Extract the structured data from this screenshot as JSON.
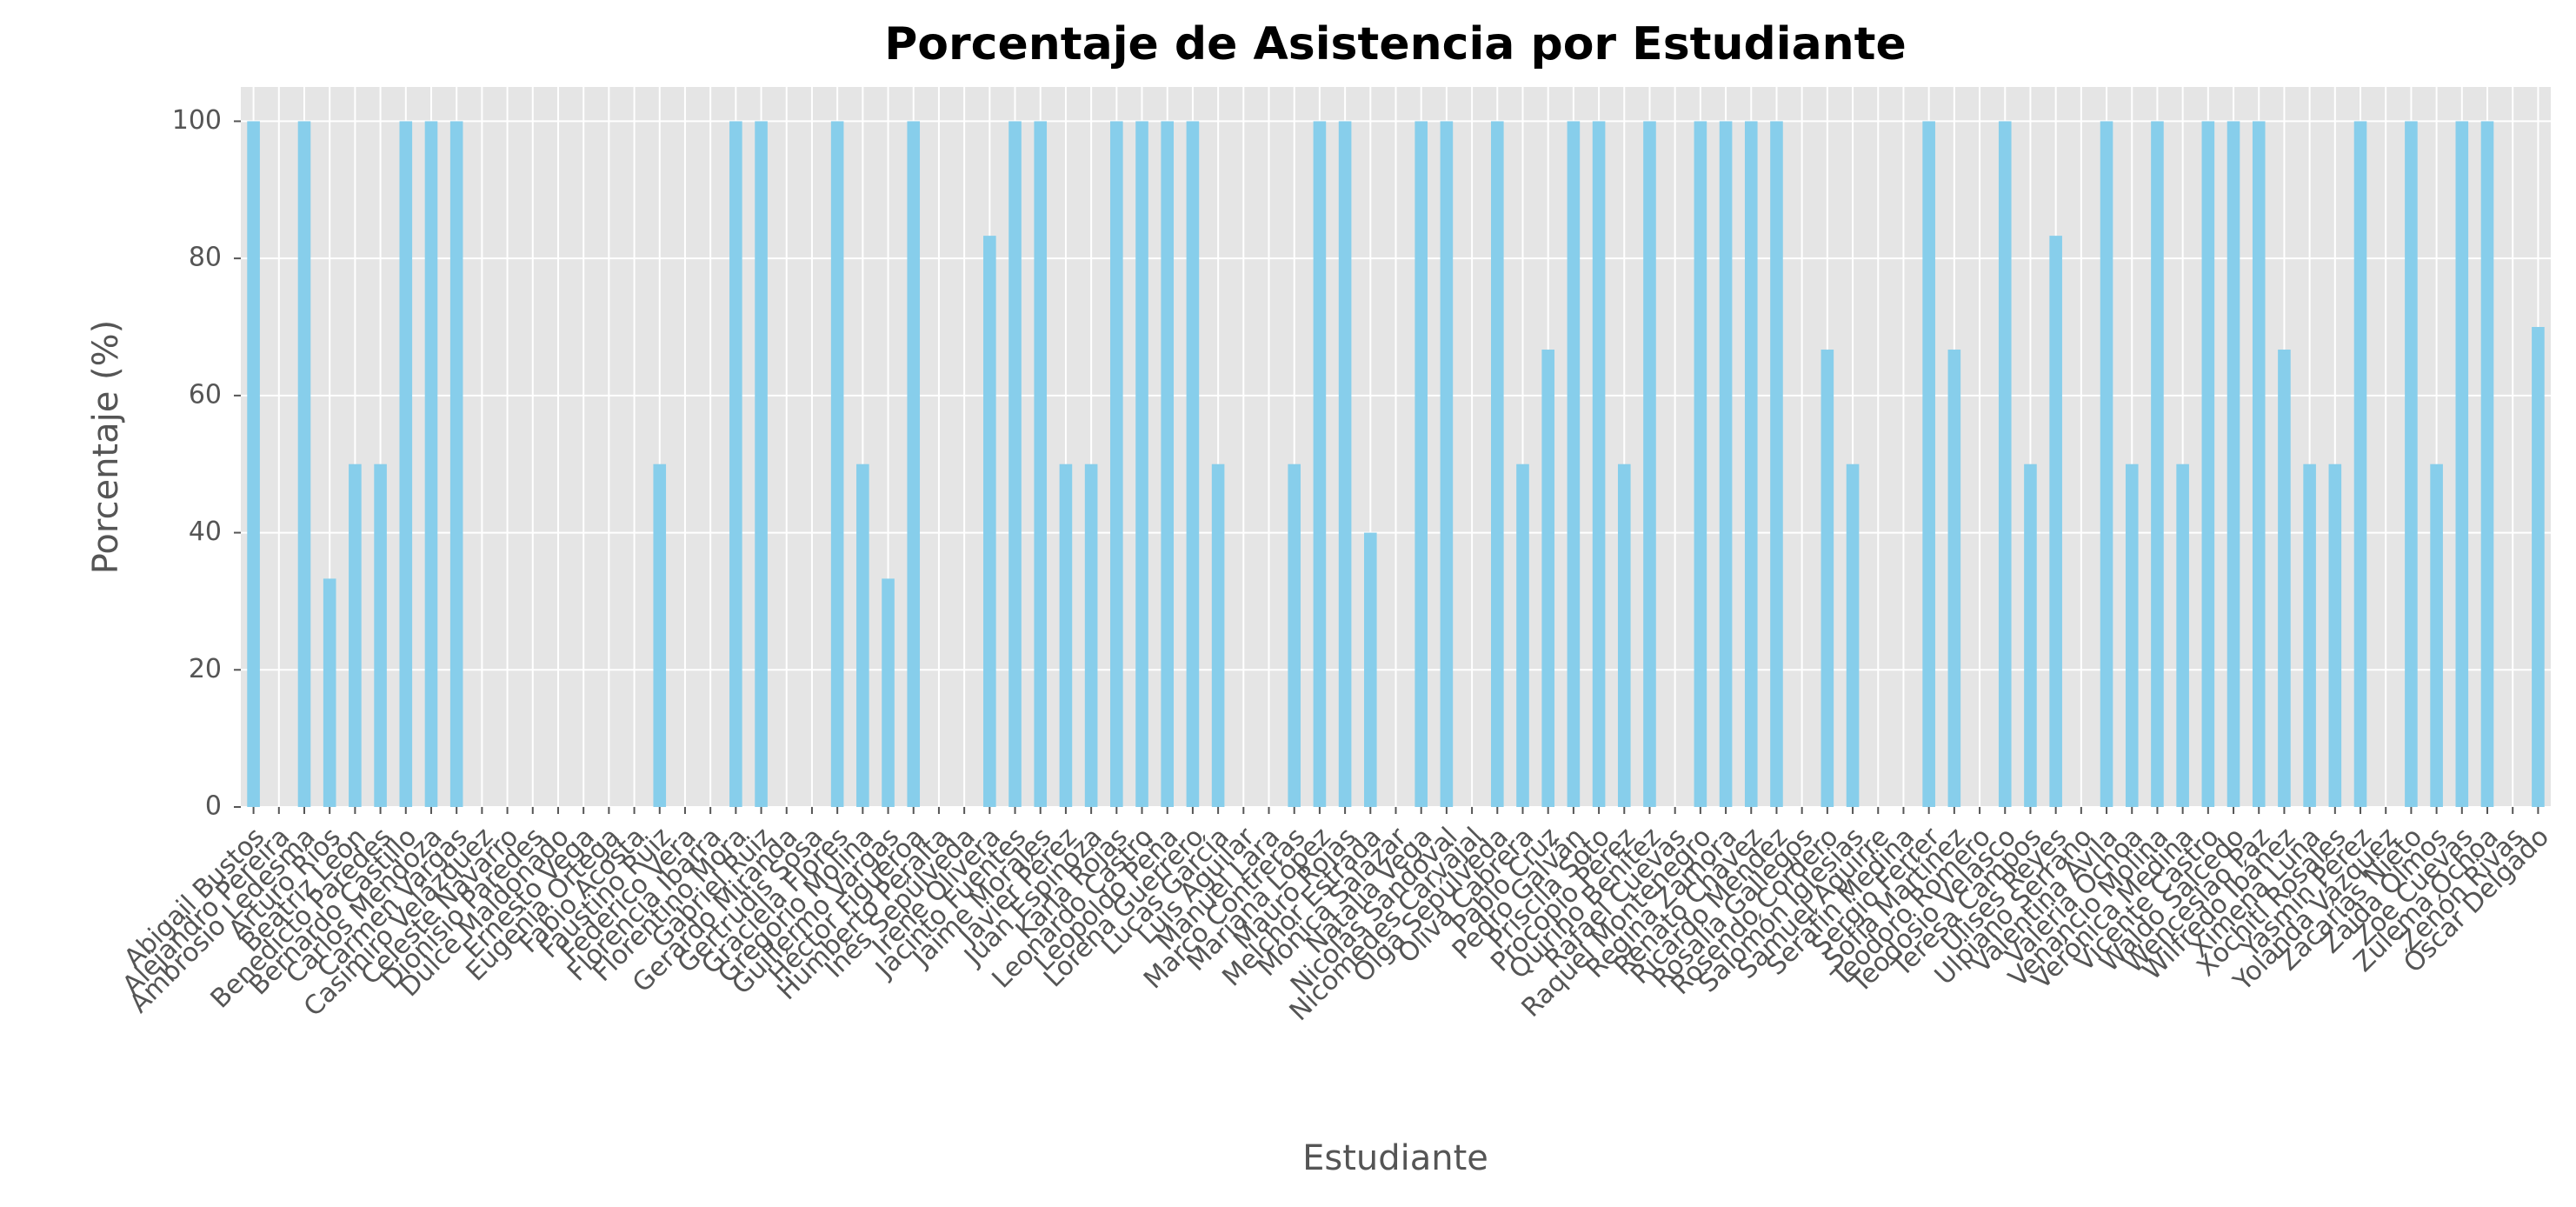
{
  "chart_data": {
    "type": "bar",
    "title": "Porcentaje de Asistencia por Estudiante",
    "x_label": "Estudiante",
    "y_label": "Porcentaje (%)",
    "categories": [
      "Abigail Bustos",
      "Alejandro Pereira",
      "Ambrosio Ledesma",
      "Arturo Ríos",
      "Beatriz León",
      "Benedicto Paredes",
      "Bernardo Castillo",
      "Carlos Mendoza",
      "Carmen Vargas",
      "Casimiro Velázquez",
      "Celeste Navarro",
      "Dionisio Paredes",
      "Dulce Maldonado",
      "Ernesto Vega",
      "Eugenia Ortega",
      "Fabio Acosta",
      "Faustino Ruiz",
      "Federico Vera",
      "Florencia Ibarra",
      "Florentino Mora",
      "Gabriel Ruiz",
      "Gerardo Miranda",
      "Gertrudis Sosa",
      "Graciela Flores",
      "Gregorio Molina",
      "Guillermo Vargas",
      "Héctor Figueroa",
      "Humberto Peralta",
      "Inés Sepúlveda",
      "Irene Olivera",
      "Jacinto Fuentes",
      "Jaime Morales",
      "Javier Pérez",
      "Juan Espinoza",
      "Karla Rojas",
      "Leonardo Castro",
      "Leopoldo Peña",
      "Lorena Guerrero",
      "Lucas García",
      "Luis Aguilar",
      "Manuel Lara",
      "Marco Contreras",
      "Mariana López",
      "Mauro Rojas",
      "Melchor Estrada",
      "Mónica Salazar",
      "Natalia Vega",
      "Nicolás Sandoval",
      "Nicomedes Carvajal",
      "Olga Sepúlveda",
      "Oliva Cabrera",
      "Pablo Cruz",
      "Pedro Galván",
      "Priscila Soto",
      "Procopio Pérez",
      "Quirino Benítez",
      "Rafael Cuevas",
      "Raquel Montenegro",
      "Regina Zamora",
      "Renato Chávez",
      "Ricardo Méndez",
      "Rosalía Gallegos",
      "Rosendo Cordero",
      "Salomón Iglesias",
      "Samuel Aguirre",
      "Serafín Medina",
      "Sergio Ferrer",
      "Sofía Martínez",
      "Teodoro Romero",
      "Teodosio Velasco",
      "Teresa Campos",
      "Ulises Reyes",
      "Ulpiano Serrano",
      "Valentina Ávila",
      "Valeria Ochoa",
      "Venancio Molina",
      "Verónica Medina",
      "Vicente Castro",
      "Waldo Salcedo",
      "Wenceslao Paz",
      "Wilfredo Ibáñez",
      "Ximena Luna",
      "Xochitl Rosales",
      "Yasmín Pérez",
      "Yolanda Vázquez",
      "Zacarías Nieto",
      "Zaida Olmos",
      "Zoe Cuevas",
      "Zulema Ochoa",
      "Zenón Rivas",
      "Óscar Delgado"
    ],
    "values": [
      100,
      0,
      100,
      33.3,
      50,
      50,
      100,
      100,
      100,
      0,
      0,
      0,
      0,
      0,
      0,
      0,
      50,
      0,
      0,
      100,
      100,
      0,
      0,
      100,
      50,
      33.3,
      100,
      0,
      0,
      83.3,
      100,
      100,
      50,
      50,
      100,
      100,
      100,
      100,
      50,
      0,
      0,
      50,
      100,
      100,
      40,
      0,
      100,
      100,
      0,
      100,
      50,
      66.7,
      100,
      100,
      50,
      100,
      0,
      100,
      100,
      100,
      100,
      0,
      66.7,
      50,
      0,
      0,
      100,
      66.7,
      0,
      100,
      50,
      83.3,
      0,
      100,
      50,
      100,
      50,
      100,
      100,
      100,
      66.7,
      50,
      50,
      100,
      0,
      100,
      50,
      100,
      100,
      0,
      70
    ],
    "color": "#87ceeb",
    "ylim": [
      0,
      105
    ],
    "yticks": [
      0,
      20,
      40,
      60,
      80,
      100
    ],
    "grid": true
  }
}
